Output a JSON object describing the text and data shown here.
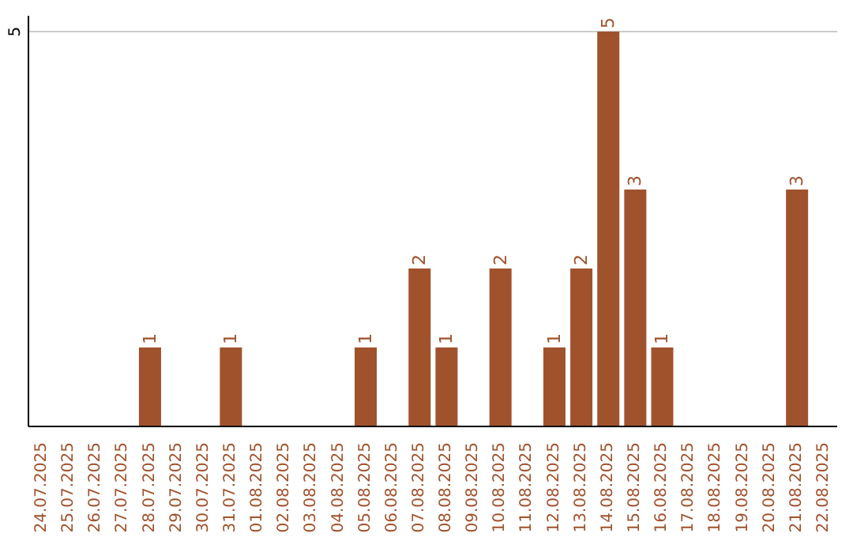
{
  "chart_data": {
    "type": "bar",
    "categories": [
      "24.07.2025",
      "25.07.2025",
      "26.07.2025",
      "27.07.2025",
      "28.07.2025",
      "29.07.2025",
      "30.07.2025",
      "31.07.2025",
      "01.08.2025",
      "02.08.2025",
      "03.08.2025",
      "04.08.2025",
      "05.08.2025",
      "06.08.2025",
      "07.08.2025",
      "08.08.2025",
      "09.08.2025",
      "10.08.2025",
      "11.08.2025",
      "12.08.2025",
      "13.08.2025",
      "14.08.2025",
      "15.08.2025",
      "16.08.2025",
      "17.08.2025",
      "18.08.2025",
      "19.08.2025",
      "20.08.2025",
      "21.08.2025",
      "22.08.2025"
    ],
    "values": [
      0,
      0,
      0,
      0,
      1,
      0,
      0,
      1,
      0,
      0,
      0,
      0,
      1,
      0,
      2,
      1,
      0,
      2,
      0,
      1,
      2,
      5,
      3,
      1,
      0,
      0,
      0,
      0,
      3,
      0
    ],
    "value_labels": [
      null,
      null,
      null,
      null,
      "1",
      null,
      null,
      "1",
      null,
      null,
      null,
      null,
      "1",
      null,
      "2",
      "1",
      null,
      "2",
      null,
      "1",
      "2",
      "5",
      "3",
      "1",
      null,
      null,
      null,
      null,
      "3",
      null
    ],
    "color": "#a0522d",
    "ylim": [
      0,
      5.2
    ],
    "yticks": [
      5
    ],
    "grid": "y",
    "legend": false
  }
}
